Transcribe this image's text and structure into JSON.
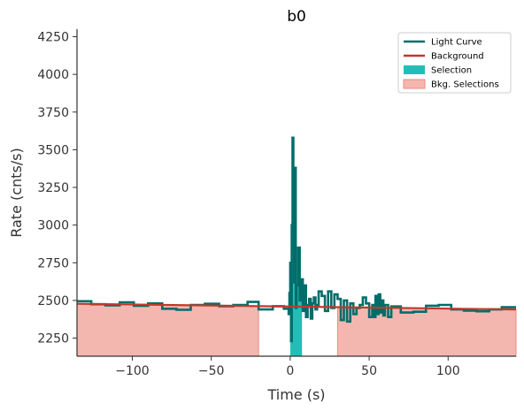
{
  "chart_data": {
    "type": "line",
    "title": "b0",
    "xlabel": "Time (s)",
    "ylabel": "Rate (cnts/s)",
    "xlim": [
      -135,
      143
    ],
    "ylim": [
      2130,
      4300
    ],
    "xticks": [
      -100,
      -50,
      0,
      50,
      100
    ],
    "xtick_labels": [
      "−100",
      "−50",
      "0",
      "50",
      "100"
    ],
    "yticks": [
      2250,
      2500,
      2750,
      3000,
      3250,
      3500,
      3750,
      4000,
      4250
    ],
    "ytick_labels": [
      "2250",
      "2500",
      "2750",
      "3000",
      "3250",
      "3500",
      "3750",
      "4000",
      "4250"
    ],
    "grid": false,
    "legend_position": "top-right",
    "legend": [
      {
        "label": "Light Curve",
        "kind": "line",
        "color": "#006d6a"
      },
      {
        "label": "Background",
        "kind": "line",
        "color": "#c0392b"
      },
      {
        "label": "Selection",
        "kind": "patch",
        "color": "#1fbfb8"
      },
      {
        "label": "Bkg. Selections",
        "kind": "patch",
        "color": "#f4b7b0"
      }
    ],
    "light_curve": {
      "color": "#006d6a",
      "x": [
        -135,
        -126,
        -117,
        -108,
        -99,
        -90,
        -81,
        -72,
        -63,
        -54,
        -45,
        -36,
        -27,
        -20,
        -11,
        -4,
        -1,
        -0.5,
        0,
        0.5,
        1,
        1.5,
        2,
        2.5,
        3,
        3.5,
        4,
        5,
        6,
        7,
        8,
        9,
        10,
        11,
        12,
        13,
        14,
        15,
        16,
        17,
        18,
        20,
        22,
        24,
        26,
        28,
        30,
        32,
        34,
        36,
        38,
        40,
        42,
        44,
        46,
        48,
        50,
        52,
        53,
        54,
        55,
        56,
        57,
        58,
        59,
        60,
        62,
        64,
        70,
        78,
        86,
        94,
        102,
        110,
        118,
        126,
        134
      ],
      "y": [
        2495,
        2475,
        2468,
        2488,
        2465,
        2480,
        2445,
        2438,
        2470,
        2478,
        2462,
        2470,
        2490,
        2440,
        2462,
        2445,
        2410,
        2550,
        2750,
        2230,
        3000,
        3580,
        2950,
        2620,
        3380,
        2450,
        2600,
        2850,
        2500,
        2640,
        2430,
        2600,
        2390,
        2470,
        2510,
        2380,
        2480,
        2520,
        2440,
        2470,
        2560,
        2530,
        2430,
        2560,
        2450,
        2540,
        2510,
        2370,
        2500,
        2360,
        2480,
        2410,
        2450,
        2470,
        2520,
        2480,
        2390,
        2470,
        2390,
        2530,
        2410,
        2540,
        2420,
        2500,
        2400,
        2470,
        2390,
        2460,
        2420,
        2425,
        2465,
        2470,
        2440,
        2432,
        2428,
        2440,
        2455
      ]
    },
    "background": {
      "color": "#c0392b",
      "x": [
        -135,
        143
      ],
      "y": [
        2478,
        2440
      ]
    },
    "selection": {
      "color": "#1fbfb8",
      "x_range": [
        0,
        7.5
      ]
    },
    "bkg_selections": {
      "color": "#f4b7b0",
      "ranges": [
        [
          -135,
          -20
        ],
        [
          30,
          143
        ]
      ]
    }
  }
}
